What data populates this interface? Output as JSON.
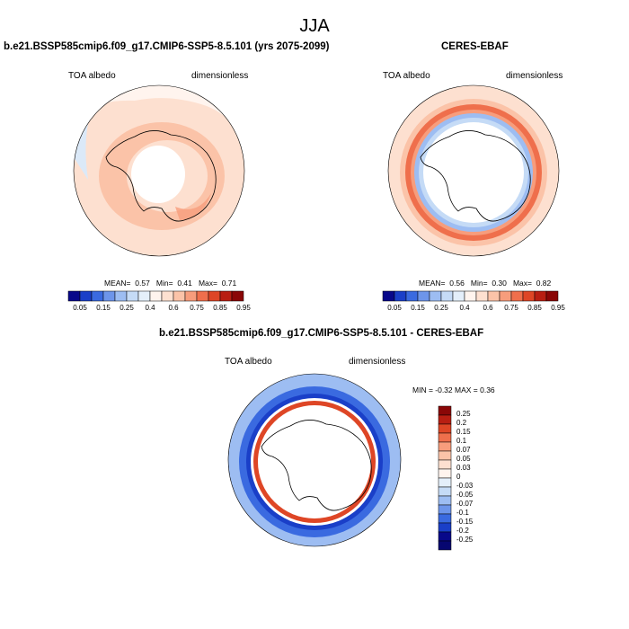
{
  "figure": {
    "title": "JJA",
    "panel_left": {
      "title": "b.e21.BSSP585cmip6.f09_g17.CMIP6-SSP5-8.5.101 (yrs 2075-2099)",
      "variable": "TOA albedo",
      "units": "dimensionless",
      "mean_label": "MEAN=",
      "mean": "0.57",
      "min_label": "Min=",
      "min": "0.41",
      "max_label": "Max=",
      "max": "0.71"
    },
    "panel_right": {
      "title": "CERES-EBAF",
      "variable": "TOA albedo",
      "units": "dimensionless",
      "mean_label": "MEAN=",
      "mean": "0.56",
      "min_label": "Min=",
      "min": "0.30",
      "max_label": "Max=",
      "max": "0.82"
    },
    "panel_diff": {
      "title": "b.e21.BSSP585cmip6.f09_g17.CMIP6-SSP5-8.5.101 - CERES-EBAF",
      "variable": "TOA albedo",
      "units": "dimensionless",
      "minmax_text": "MIN = -0.32 MAX = 0.36"
    },
    "abs_colorbar": {
      "labels": [
        "0.05",
        "0.15",
        "0.25",
        "0.4",
        "0.6",
        "0.75",
        "0.85",
        "0.95"
      ],
      "colors": [
        "#08088a",
        "#1a3fc8",
        "#3a6ae0",
        "#6d95ea",
        "#9dbdf2",
        "#c5dbf6",
        "#e4effa",
        "#fff4ee",
        "#fde0d0",
        "#fbc3a8",
        "#f79d7c",
        "#ef6f4c",
        "#de4626",
        "#b81e12",
        "#8a0707"
      ]
    },
    "diff_colorbar": {
      "labels": [
        "0.25",
        "0.2",
        "0.15",
        "0.1",
        "0.07",
        "0.05",
        "0.03",
        "0",
        "-0.03",
        "-0.05",
        "-0.07",
        "-0.1",
        "-0.15",
        "-0.2",
        "-0.25"
      ],
      "colors": [
        "#8a0707",
        "#b81e12",
        "#de4626",
        "#ef6f4c",
        "#f79d7c",
        "#fbc3a8",
        "#fde0d0",
        "#fff4ee",
        "#e4effa",
        "#c5dbf6",
        "#9dbdf2",
        "#6d95ea",
        "#3a6ae0",
        "#1a3fc8",
        "#08088a",
        "#060670"
      ]
    }
  },
  "chart_data": [
    {
      "type": "heatmap",
      "title": "b.e21.BSSP585cmip6.f09_g17.CMIP6-SSP5-8.5.101 (yrs 2075-2099)",
      "variable": "TOA albedo",
      "season": "JJA",
      "projection": "south polar stereographic",
      "stats": {
        "mean": 0.57,
        "min": 0.41,
        "max": 0.71
      },
      "contour_levels": [
        0.05,
        0.1,
        0.15,
        0.2,
        0.25,
        0.3,
        0.4,
        0.5,
        0.6,
        0.7,
        0.75,
        0.8,
        0.85,
        0.9,
        0.95
      ]
    },
    {
      "type": "heatmap",
      "title": "CERES-EBAF",
      "variable": "TOA albedo",
      "season": "JJA",
      "projection": "south polar stereographic",
      "stats": {
        "mean": 0.56,
        "min": 0.3,
        "max": 0.82
      },
      "contour_levels": [
        0.05,
        0.1,
        0.15,
        0.2,
        0.25,
        0.3,
        0.4,
        0.5,
        0.6,
        0.7,
        0.75,
        0.8,
        0.85,
        0.9,
        0.95
      ]
    },
    {
      "type": "heatmap",
      "title": "b.e21.BSSP585cmip6.f09_g17.CMIP6-SSP5-8.5.101 - CERES-EBAF",
      "variable": "TOA albedo",
      "season": "JJA",
      "projection": "south polar stereographic",
      "stats": {
        "min": -0.32,
        "max": 0.36
      },
      "contour_levels": [
        -0.25,
        -0.2,
        -0.15,
        -0.1,
        -0.07,
        -0.05,
        -0.03,
        0,
        0.03,
        0.05,
        0.07,
        0.1,
        0.15,
        0.2,
        0.25
      ]
    }
  ]
}
